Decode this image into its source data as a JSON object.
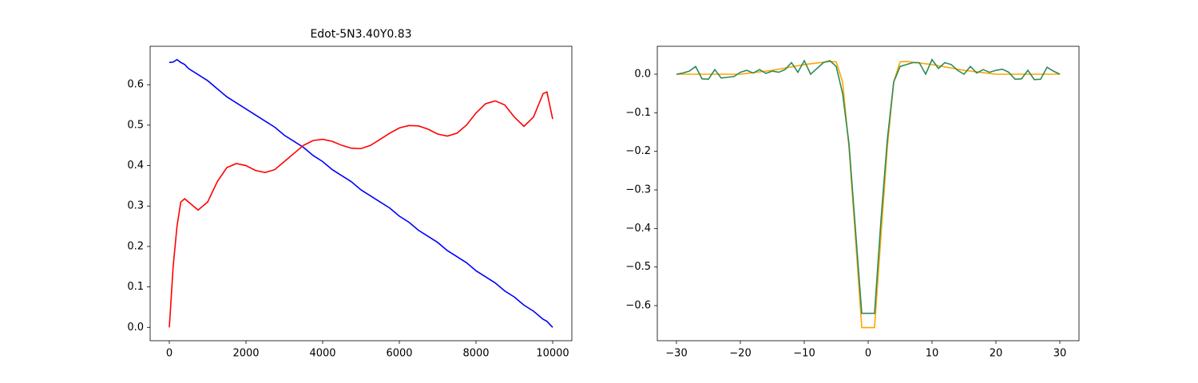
{
  "chart_data": [
    {
      "type": "line",
      "title": "Edot-5N3.40Y0.83",
      "x": [
        0,
        100,
        200,
        300,
        400,
        500,
        750,
        1000,
        1250,
        1500,
        1750,
        2000,
        2250,
        2500,
        2750,
        3000,
        3250,
        3500,
        3750,
        4000,
        4250,
        4500,
        4750,
        5000,
        5250,
        5500,
        5750,
        6000,
        6250,
        6500,
        6750,
        7000,
        7250,
        7500,
        7750,
        8000,
        8250,
        8500,
        8750,
        9000,
        9250,
        9500,
        9750,
        9850,
        10000
      ],
      "series": [
        {
          "color": "#0000ff",
          "values": [
            0.655,
            0.656,
            0.662,
            0.655,
            0.65,
            0.64,
            0.625,
            0.61,
            0.59,
            0.57,
            0.555,
            0.54,
            0.525,
            0.51,
            0.495,
            0.475,
            0.46,
            0.445,
            0.425,
            0.41,
            0.39,
            0.375,
            0.36,
            0.34,
            0.325,
            0.31,
            0.295,
            0.275,
            0.26,
            0.24,
            0.225,
            0.21,
            0.19,
            0.175,
            0.16,
            0.14,
            0.125,
            0.11,
            0.09,
            0.075,
            0.055,
            0.04,
            0.02,
            0.015,
            0.0
          ]
        },
        {
          "color": "#ff0000",
          "values": [
            0,
            0.15,
            0.25,
            0.31,
            0.318,
            0.31,
            0.29,
            0.31,
            0.36,
            0.395,
            0.405,
            0.4,
            0.388,
            0.383,
            0.39,
            0.41,
            0.43,
            0.45,
            0.462,
            0.465,
            0.46,
            0.45,
            0.443,
            0.442,
            0.45,
            0.465,
            0.48,
            0.493,
            0.499,
            0.498,
            0.49,
            0.478,
            0.473,
            0.48,
            0.5,
            0.53,
            0.553,
            0.56,
            0.55,
            0.52,
            0.497,
            0.52,
            0.578,
            0.582,
            0.515
          ]
        }
      ],
      "xlim": [
        -500,
        10500
      ],
      "ylim": [
        -0.033,
        0.695
      ],
      "xticks": [
        0,
        2000,
        4000,
        6000,
        8000,
        10000
      ],
      "yticks": [
        {
          "value": 0,
          "label": "0.0"
        },
        {
          "value": 0.1,
          "label": "0.1"
        },
        {
          "value": 0.2,
          "label": "0.2"
        },
        {
          "value": 0.3,
          "label": "0.3"
        },
        {
          "value": 0.4,
          "label": "0.4"
        },
        {
          "value": 0.5,
          "label": "0.5"
        },
        {
          "value": 0.6,
          "label": "0.6"
        }
      ],
      "grid": false
    },
    {
      "type": "line",
      "x": [
        -30,
        -29,
        -28,
        -27,
        -26,
        -25,
        -24,
        -23,
        -22,
        -21,
        -20,
        -19,
        -18,
        -17,
        -16,
        -15,
        -14,
        -13,
        -12,
        -11,
        -10,
        -9,
        -8,
        -7,
        -6,
        -5,
        -4,
        -3,
        -2,
        -1,
        0,
        1,
        2,
        3,
        4,
        5,
        6,
        7,
        8,
        9,
        10,
        11,
        12,
        13,
        14,
        15,
        16,
        17,
        18,
        19,
        20,
        21,
        22,
        23,
        24,
        25,
        26,
        27,
        28,
        29,
        30
      ],
      "series": [
        {
          "color": "#ffa500",
          "values": [
            0,
            0,
            0,
            0,
            0,
            0,
            0,
            0,
            0,
            0,
            0,
            0.002,
            0.004,
            0.006,
            0.008,
            0.01,
            0.013,
            0.016,
            0.019,
            0.022,
            0.025,
            0.027,
            0.029,
            0.031,
            0.033,
            0.032,
            -0.02,
            -0.19,
            -0.42,
            -0.657,
            -0.657,
            -0.657,
            -0.42,
            -0.19,
            -0.02,
            0.032,
            0.033,
            0.031,
            0.029,
            0.027,
            0.025,
            0.022,
            0.019,
            0.016,
            0.013,
            0.01,
            0.008,
            0.006,
            0.004,
            0.002,
            0,
            0,
            0,
            0,
            0,
            0,
            0,
            0,
            0,
            0,
            0
          ]
        },
        {
          "color": "#2e8b57",
          "values": [
            0,
            0.003,
            0.008,
            0.02,
            -0.012,
            -0.013,
            0.012,
            -0.01,
            -0.008,
            -0.006,
            0.005,
            0.01,
            0.003,
            0.012,
            0.002,
            0.008,
            0.005,
            0.012,
            0.03,
            0.005,
            0.035,
            0.0,
            0.015,
            0.03,
            0.035,
            0.02,
            -0.05,
            -0.18,
            -0.4,
            -0.62,
            -0.62,
            -0.62,
            -0.38,
            -0.17,
            -0.02,
            0.02,
            0.025,
            0.03,
            0.03,
            0.0,
            0.038,
            0.015,
            0.03,
            0.025,
            0.01,
            0.0,
            0.02,
            0.003,
            0.012,
            0.005,
            0.01,
            0.013,
            0.005,
            -0.013,
            -0.012,
            0.01,
            -0.014,
            -0.013,
            0.018,
            0.008,
            0
          ]
        }
      ],
      "xlim": [
        -33,
        33
      ],
      "ylim": [
        -0.691,
        0.0724
      ],
      "xticks": [
        {
          "value": -30,
          "label": "−30"
        },
        {
          "value": -20,
          "label": "−20"
        },
        {
          "value": -10,
          "label": "−10"
        },
        0,
        10,
        20,
        30
      ],
      "yticks": [
        {
          "value": 0,
          "label": "0.0"
        },
        {
          "value": -0.1,
          "label": "−0.1"
        },
        {
          "value": -0.2,
          "label": "−0.2"
        },
        {
          "value": -0.3,
          "label": "−0.3"
        },
        {
          "value": -0.4,
          "label": "−0.4"
        },
        {
          "value": -0.5,
          "label": "−0.5"
        },
        {
          "value": -0.6,
          "label": "−0.6"
        }
      ],
      "grid": false
    }
  ]
}
